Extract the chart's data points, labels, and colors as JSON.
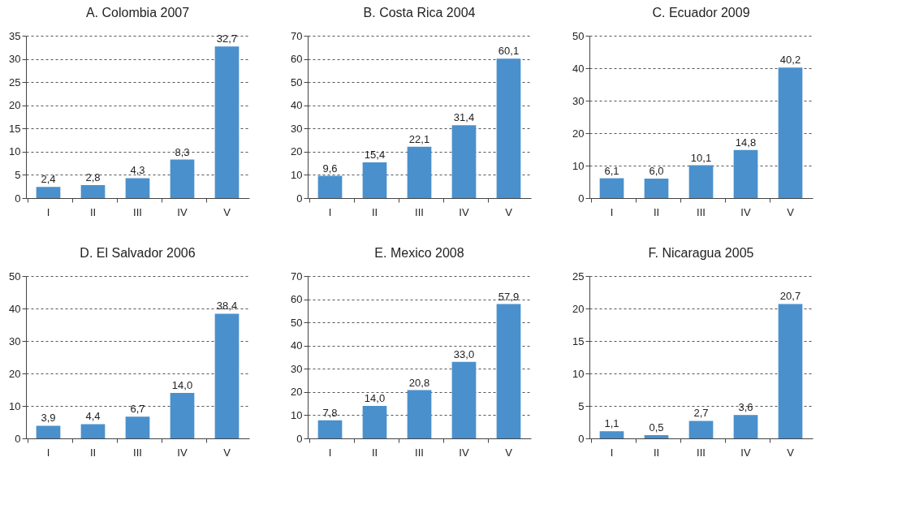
{
  "chart_data": [
    {
      "type": "bar",
      "title": "A. Colombia 2007",
      "categories": [
        "I",
        "II",
        "III",
        "IV",
        "V"
      ],
      "values": [
        2.4,
        2.8,
        4.3,
        8.3,
        32.7
      ],
      "value_labels": [
        "2,4",
        "2,8",
        "4,3",
        "8,3",
        "32,7"
      ],
      "color": "#4a90cd",
      "ylim": [
        0,
        35
      ],
      "yticks": [
        0,
        5,
        10,
        15,
        20,
        25,
        30,
        35
      ],
      "grid": "y"
    },
    {
      "type": "bar",
      "title": "B. Costa Rica 2004",
      "categories": [
        "I",
        "II",
        "III",
        "IV",
        "V"
      ],
      "values": [
        9.6,
        15.4,
        22.1,
        31.4,
        60.1
      ],
      "value_labels": [
        "9,6",
        "15,4",
        "22,1",
        "31,4",
        "60,1"
      ],
      "color": "#4a90cd",
      "ylim": [
        0,
        70
      ],
      "yticks": [
        0,
        10,
        20,
        30,
        40,
        50,
        60,
        70
      ],
      "grid": "y"
    },
    {
      "type": "bar",
      "title": "C. Ecuador 2009",
      "categories": [
        "I",
        "II",
        "III",
        "IV",
        "V"
      ],
      "values": [
        6.1,
        6.0,
        10.1,
        14.8,
        40.2
      ],
      "value_labels": [
        "6,1",
        "6,0",
        "10,1",
        "14,8",
        "40,2"
      ],
      "color": "#4a90cd",
      "ylim": [
        0,
        50
      ],
      "yticks": [
        0,
        10,
        20,
        30,
        40,
        50
      ],
      "grid": "y"
    },
    {
      "type": "bar",
      "title": "D. El Salvador 2006",
      "categories": [
        "I",
        "II",
        "III",
        "IV",
        "V"
      ],
      "values": [
        3.9,
        4.4,
        6.7,
        14.0,
        38.4
      ],
      "value_labels": [
        "3,9",
        "4,4",
        "6,7",
        "14,0",
        "38,4"
      ],
      "color": "#4a90cd",
      "ylim": [
        0,
        50
      ],
      "yticks": [
        0,
        10,
        20,
        30,
        40,
        50
      ],
      "grid": "y"
    },
    {
      "type": "bar",
      "title": "E. Mexico 2008",
      "categories": [
        "I",
        "II",
        "III",
        "IV",
        "V"
      ],
      "values": [
        7.8,
        14.0,
        20.8,
        33.0,
        57.9
      ],
      "value_labels": [
        "7,8",
        "14,0",
        "20,8",
        "33,0",
        "57,9"
      ],
      "color": "#4a90cd",
      "ylim": [
        0,
        70
      ],
      "yticks": [
        0,
        10,
        20,
        30,
        40,
        50,
        60,
        70
      ],
      "grid": "y"
    },
    {
      "type": "bar",
      "title": "F. Nicaragua 2005",
      "categories": [
        "I",
        "II",
        "III",
        "IV",
        "V"
      ],
      "values": [
        1.1,
        0.5,
        2.7,
        3.6,
        20.7
      ],
      "value_labels": [
        "1,1",
        "0,5",
        "2,7",
        "3,6",
        "20,7"
      ],
      "color": "#4a90cd",
      "ylim": [
        0,
        25
      ],
      "yticks": [
        0,
        5,
        10,
        15,
        20,
        25
      ],
      "grid": "y"
    }
  ]
}
